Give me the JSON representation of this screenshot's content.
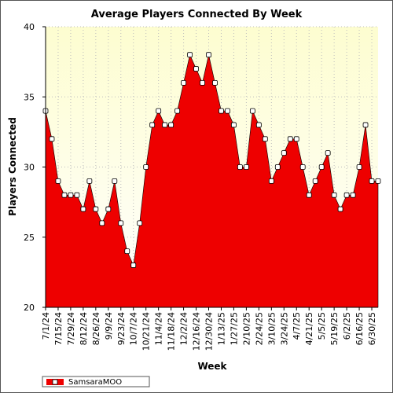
{
  "chart_data": {
    "type": "area",
    "title": "Average Players Connected By Week",
    "xlabel": "Week",
    "ylabel": "Players Connected",
    "ylim": [
      20,
      40
    ],
    "yticks": [
      20,
      25,
      30,
      35,
      40
    ],
    "grid": true,
    "legend": "bottom-left",
    "x_tick_labels": [
      "7/1/24",
      "7/15/24",
      "7/29/24",
      "8/12/24",
      "8/26/24",
      "9/9/24",
      "9/23/24",
      "10/7/24",
      "10/21/24",
      "11/4/24",
      "11/18/24",
      "12/2/24",
      "12/16/24",
      "12/30/24",
      "1/13/25",
      "1/27/25",
      "2/10/25",
      "2/24/25",
      "3/10/25",
      "3/24/25",
      "4/7/25",
      "4/21/25",
      "5/5/25",
      "5/19/25",
      "6/2/25",
      "6/16/25",
      "6/30/25"
    ],
    "x": [
      "7/1/24",
      "7/8/24",
      "7/15/24",
      "7/22/24",
      "7/29/24",
      "8/5/24",
      "8/12/24",
      "8/19/24",
      "8/26/24",
      "9/2/24",
      "9/9/24",
      "9/16/24",
      "9/23/24",
      "9/30/24",
      "10/7/24",
      "10/14/24",
      "10/21/24",
      "10/28/24",
      "11/4/24",
      "11/11/24",
      "11/18/24",
      "11/25/24",
      "12/2/24",
      "12/9/24",
      "12/16/24",
      "12/23/24",
      "12/30/24",
      "1/6/25",
      "1/13/25",
      "1/20/25",
      "1/27/25",
      "2/3/25",
      "2/10/25",
      "2/17/25",
      "2/24/25",
      "3/3/25",
      "3/10/25",
      "3/17/25",
      "3/24/25",
      "3/31/25",
      "4/7/25",
      "4/14/25",
      "4/21/25",
      "4/28/25",
      "5/5/25",
      "5/12/25",
      "5/19/25",
      "5/26/25",
      "6/2/25",
      "6/9/25",
      "6/16/25",
      "6/23/25",
      "6/30/25",
      "7/7/25"
    ],
    "series": [
      {
        "name": "SamsaraMOO",
        "color": "#ee0000",
        "values": [
          34,
          32,
          29,
          28,
          28,
          28,
          27,
          29,
          27,
          26,
          27,
          29,
          26,
          24,
          23,
          26,
          30,
          33,
          34,
          33,
          33,
          34,
          36,
          38,
          37,
          36,
          38,
          36,
          34,
          34,
          33,
          30,
          30,
          34,
          33,
          32,
          29,
          30,
          31,
          32,
          32,
          30,
          28,
          29,
          30,
          31,
          28,
          27,
          28,
          28,
          30,
          33,
          29,
          29
        ]
      }
    ],
    "colors": {
      "area": "#ee0000",
      "plot_background_top": "#fdfdd0",
      "plot_background_bottom": "#ffffff",
      "marker_fill": "#ffffff",
      "grid": "#bdbdbd"
    }
  }
}
